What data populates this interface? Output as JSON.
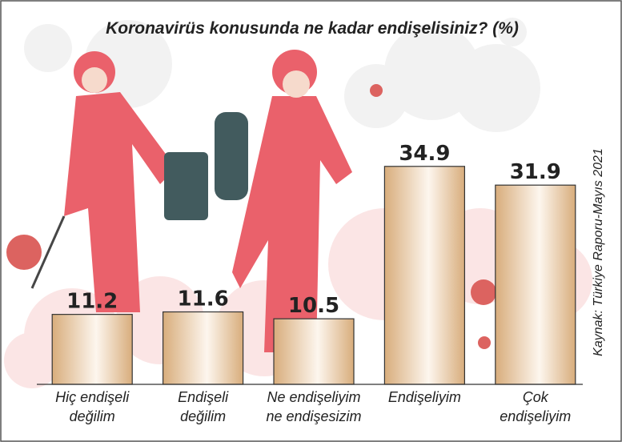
{
  "chart_data": {
    "type": "bar",
    "title": "Koronavirüs konusunda ne kadar endişelisiniz? (%)",
    "source": "Kaynak: Türkiye Raporu-Mayıs 2021",
    "categories": [
      "Hiç endişeli\ndeğilim",
      "Endişeli\ndeğilim",
      "Ne endişeliyim\nne endişesizim",
      "Endişeliyim",
      "Çok\nendişeliyim"
    ],
    "values": [
      11.2,
      11.6,
      10.5,
      34.9,
      31.9
    ],
    "color": "#d8ad7c",
    "ylim": [
      0,
      40
    ]
  }
}
